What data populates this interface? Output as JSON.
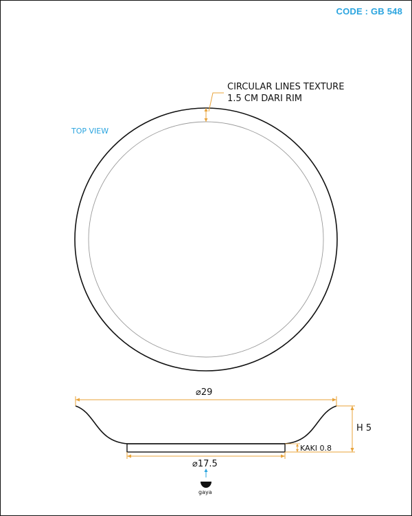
{
  "header": {
    "code": "CODE : GB 548"
  },
  "top_view": {
    "label": "TOP VIEW",
    "note_line1": "CIRCULAR LINES TEXTURE",
    "note_line2": "1.5 CM DARI RIM"
  },
  "side_view": {
    "top_diameter": "⌀29",
    "base_diameter": "⌀17.5",
    "height": "H 5",
    "foot": "KAKI 0.8"
  },
  "logo": {
    "text": "gaya"
  },
  "colors": {
    "accent": "#2aa4df",
    "dimension": "#e8a33a",
    "line": "#111111"
  }
}
